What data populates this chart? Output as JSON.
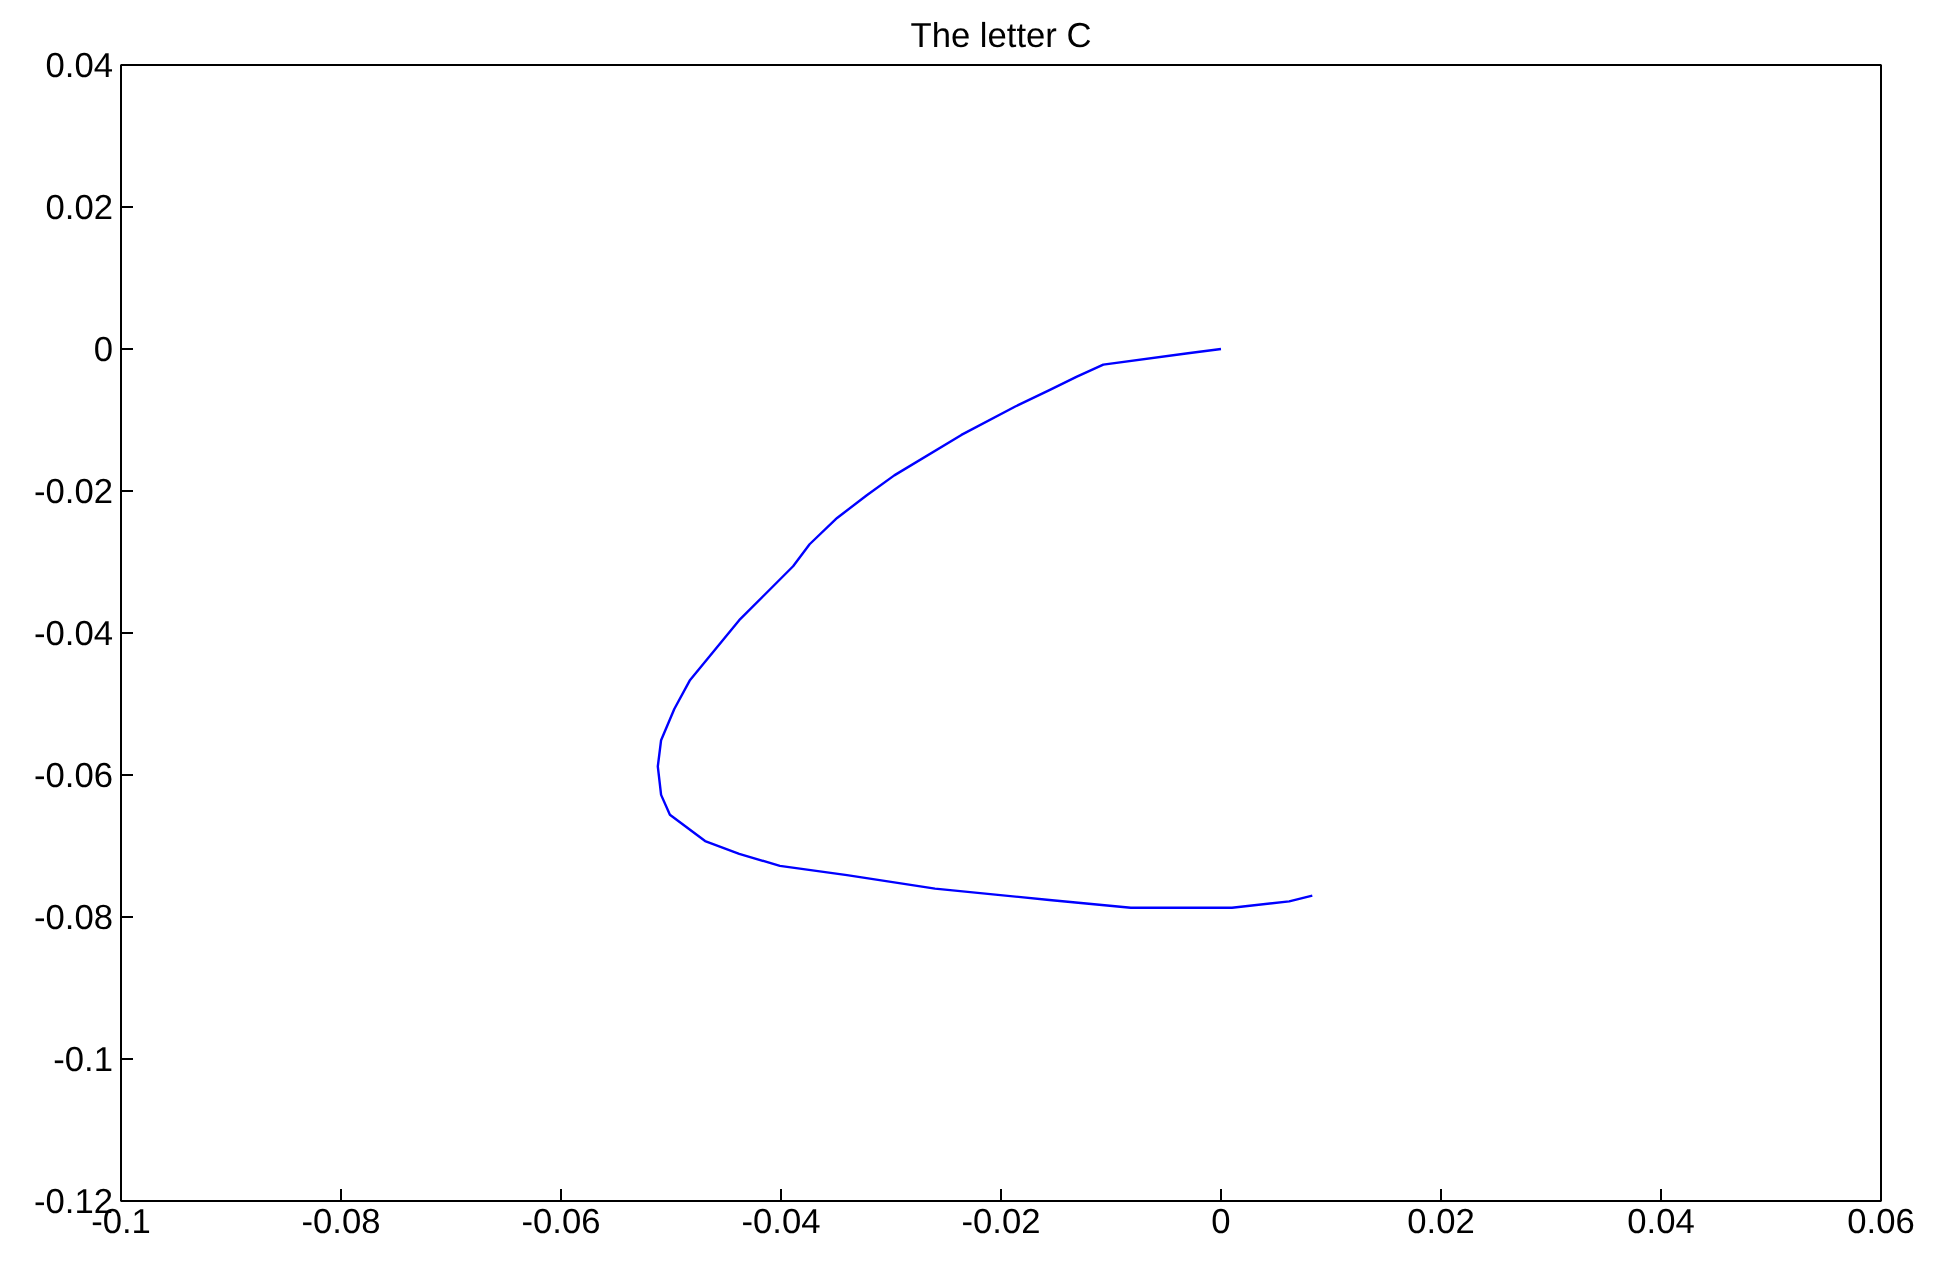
{
  "chart_data": {
    "type": "line",
    "title": "The letter C",
    "x": [
      0.0,
      -0.003,
      -0.0107,
      -0.0131,
      -0.0156,
      -0.0187,
      -0.0236,
      -0.0297,
      -0.0322,
      -0.0349,
      -0.0374,
      -0.0389,
      -0.0438,
      -0.0483,
      -0.0497,
      -0.0509,
      -0.0512,
      -0.0509,
      -0.0501,
      -0.0469,
      -0.0438,
      -0.0401,
      -0.034,
      -0.026,
      -0.0156,
      -0.0082,
      0.001,
      0.0062,
      0.0083
    ],
    "series": [
      {
        "color": "#0000ff",
        "values": [
          0.0,
          -0.0006,
          -0.0022,
          -0.0039,
          -0.0058,
          -0.0081,
          -0.0121,
          -0.0178,
          -0.0206,
          -0.0238,
          -0.0275,
          -0.0306,
          -0.0382,
          -0.0467,
          -0.0507,
          -0.0551,
          -0.0588,
          -0.0628,
          -0.0656,
          -0.0693,
          -0.0711,
          -0.0728,
          -0.0741,
          -0.076,
          -0.0776,
          -0.0787,
          -0.0787,
          -0.0778,
          -0.077
        ]
      }
    ],
    "xlim": [
      -0.1,
      0.06
    ],
    "ylim": [
      -0.12,
      0.04
    ],
    "xticks": [
      -0.1,
      -0.08,
      -0.06,
      -0.04,
      -0.02,
      0,
      0.02,
      0.04,
      0.06
    ],
    "yticks": [
      -0.12,
      -0.1,
      -0.08,
      -0.06,
      -0.04,
      -0.02,
      0,
      0.02,
      0.04
    ],
    "grid": false,
    "marker": "none",
    "line_style": "solid"
  }
}
